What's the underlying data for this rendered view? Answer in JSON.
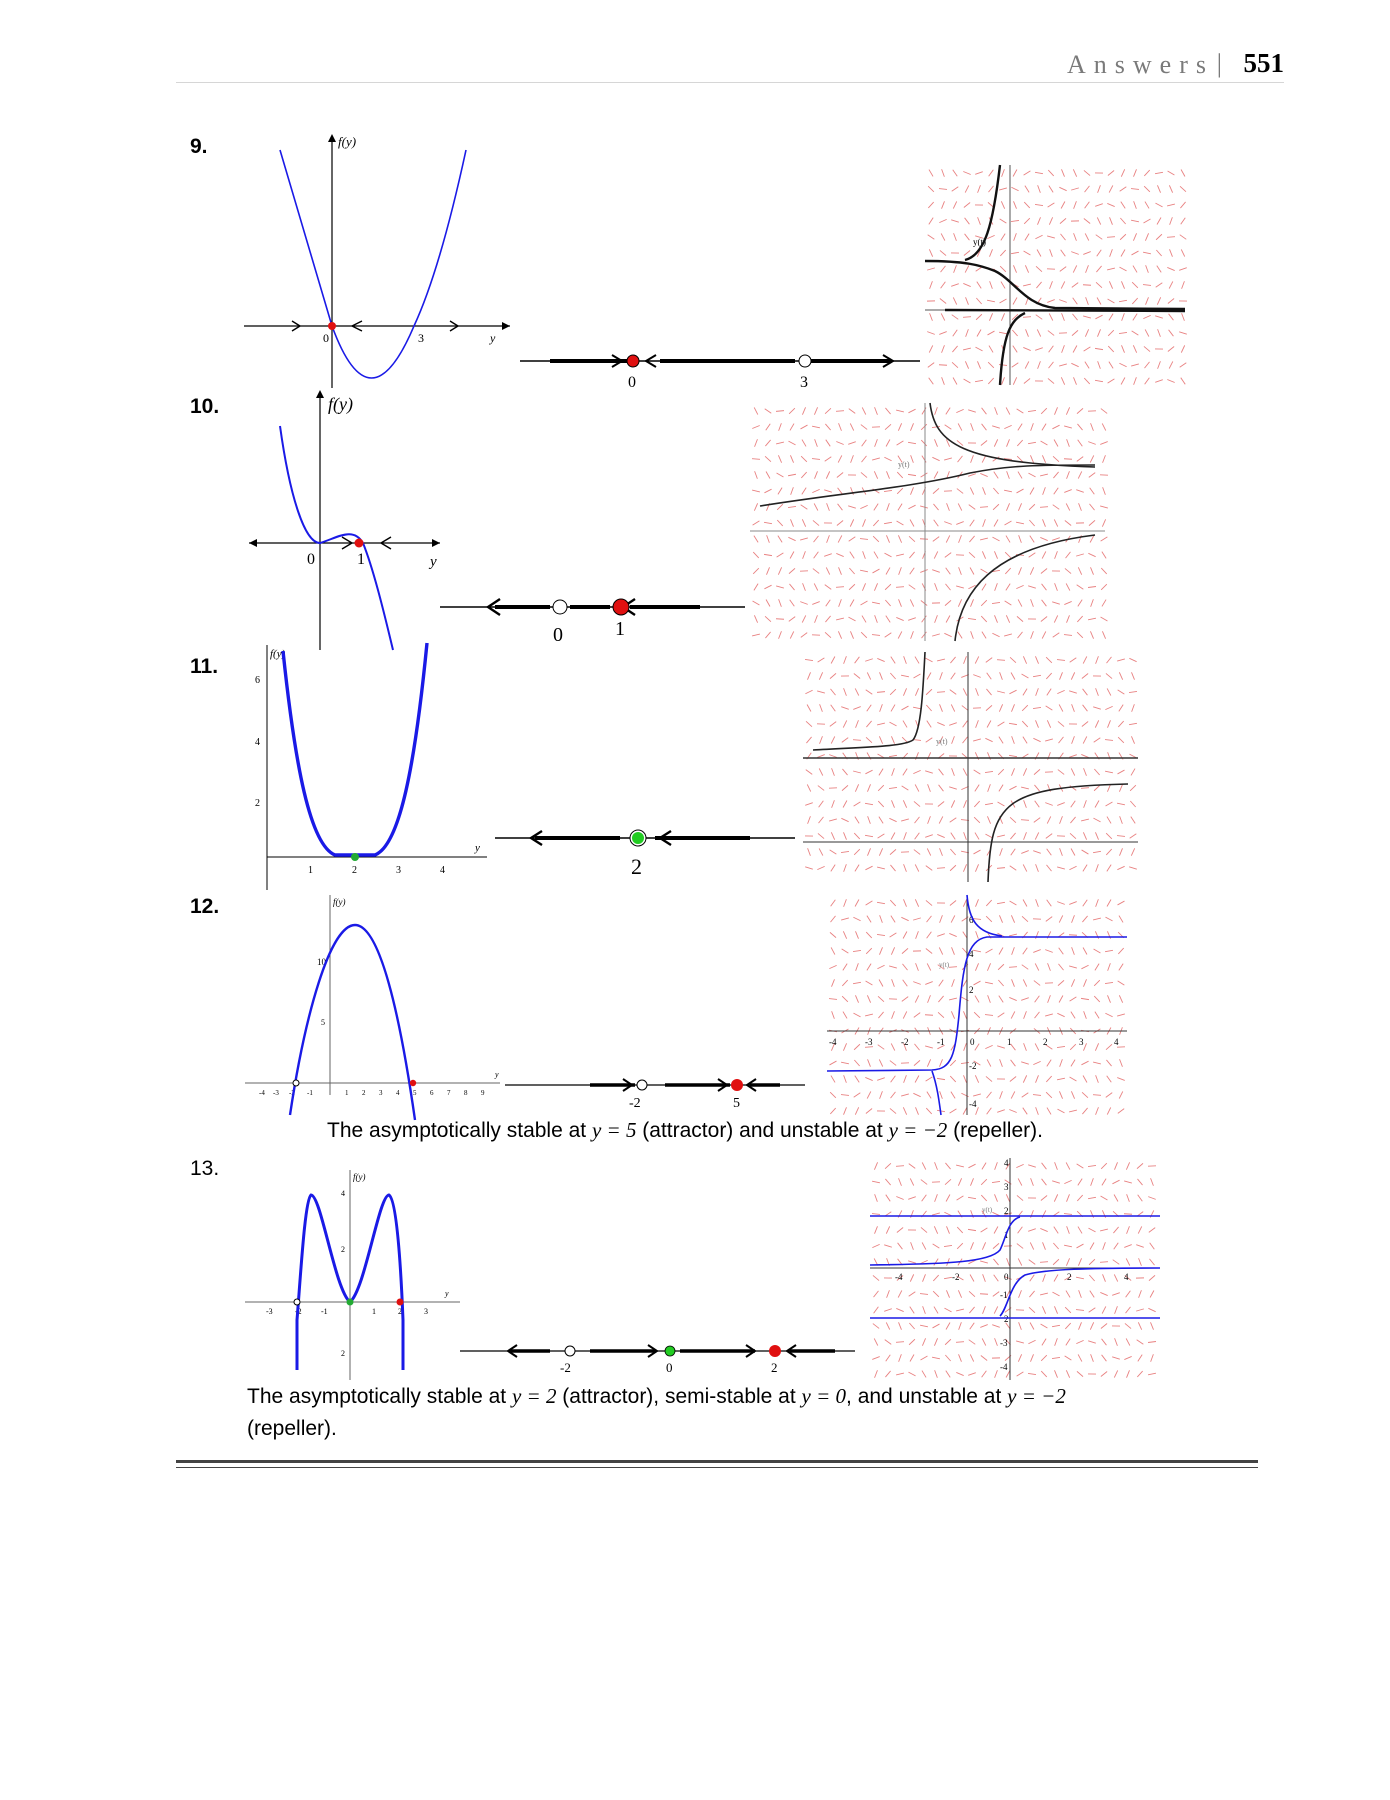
{
  "header": {
    "word": "Answers",
    "bar": "|",
    "page": "551"
  },
  "problems": [
    {
      "num": "9.",
      "f_label": "f(y)",
      "y_label": "y",
      "graph_marks": [
        "0",
        "3"
      ],
      "phase_marks": [
        "0",
        "3"
      ],
      "slope_label": "y(t)"
    },
    {
      "num": "10.",
      "f_label": "f(y)",
      "y_label": "y",
      "graph_marks": [
        "0",
        "1"
      ],
      "phase_marks": [
        "0",
        "1"
      ],
      "slope_label": "y(t)"
    },
    {
      "num": "11.",
      "f_label": "f(y)",
      "y_label": "y",
      "y_ticks": [
        "6",
        "4",
        "2"
      ],
      "x_ticks": [
        "1",
        "2",
        "3",
        "4"
      ],
      "phase_marks": [
        "2"
      ],
      "slope_label": "y(t)"
    },
    {
      "num": "12.",
      "f_label": "f(y)",
      "y_label": "y",
      "y_ticks": [
        "10",
        "5"
      ],
      "x_ticks": [
        "-4",
        "-3",
        "-2",
        "-1",
        "1",
        "2",
        "3",
        "4",
        "5",
        "6",
        "7",
        "8",
        "9"
      ],
      "phase_marks": [
        "-2",
        "5"
      ],
      "slope_y_ticks": [
        "6",
        "4",
        "2",
        "-2",
        "-4"
      ],
      "slope_x_ticks": [
        "-4",
        "-3",
        "-2",
        "-1",
        "0",
        "1",
        "2",
        "3",
        "4"
      ],
      "slope_label": "y(t)",
      "sentence": {
        "a": "The asymptotically stable at ",
        "b": "y = 5",
        "c": " (attractor) and unstable at ",
        "d": "y = −2",
        "e": " (repeller)."
      }
    },
    {
      "num": "13.",
      "f_label": "f(y)",
      "y_label": "y",
      "y_ticks": [
        "4",
        "2",
        "2"
      ],
      "x_ticks": [
        "-3",
        "-2",
        "-1",
        "1",
        "2",
        "3"
      ],
      "phase_marks": [
        "-2",
        "0",
        "2"
      ],
      "slope_y_ticks": [
        "4",
        "3",
        "2",
        "1",
        "0",
        "-1",
        "2",
        "-3",
        "-4"
      ],
      "slope_x_ticks": [
        "-4",
        "-2",
        "2",
        "4"
      ],
      "slope_label": "y(t)",
      "sentence": {
        "a": "The asymptotically stable at ",
        "b": "y = 2",
        "c": " (attractor), semi-stable at ",
        "d": "y = 0",
        "e": ", and unstable at ",
        "f": "y = −2",
        "g": "(repeller)."
      }
    }
  ],
  "colors": {
    "curve": "#1a1ae6",
    "stable": "#e01010",
    "semistable": "#22cc22",
    "field": "#e88080"
  }
}
